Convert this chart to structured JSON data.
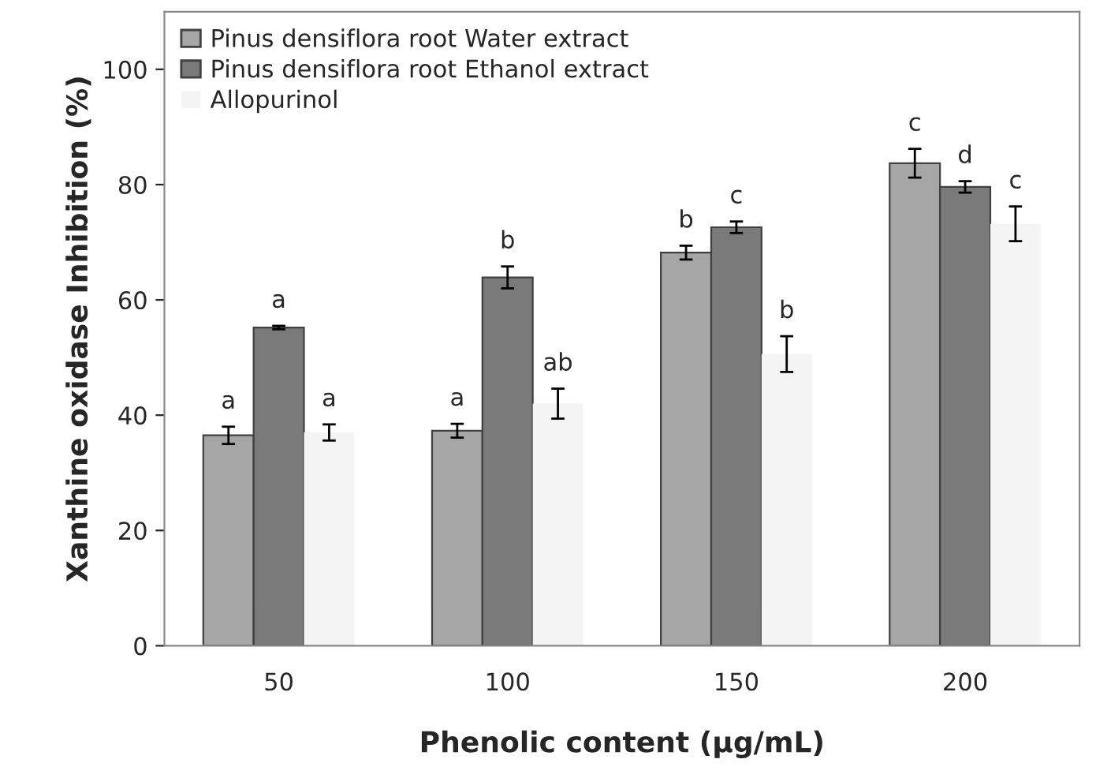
{
  "chart_data": {
    "type": "bar",
    "xlabel": "Phenolic content (µg/mL)",
    "ylabel": "Xanthine oxidase Inhibition (%)",
    "categories": [
      "50",
      "100",
      "150",
      "200"
    ],
    "series": [
      {
        "name": "Pinus densiflora root Water extract",
        "color": "#a6a6a6",
        "values": [
          36.5,
          37.3,
          68.2,
          83.7
        ],
        "errors": [
          1.5,
          1.2,
          1.2,
          2.5
        ],
        "value_labels": [
          "a",
          "a",
          "b",
          "c"
        ]
      },
      {
        "name": "Pinus densiflora root Ethanol extract",
        "color": "#7a7a7a",
        "values": [
          55.2,
          63.9,
          72.6,
          79.6
        ],
        "errors": [
          0.3,
          1.9,
          1.0,
          1.0
        ],
        "value_labels": [
          "a",
          "b",
          "c",
          "d"
        ]
      },
      {
        "name": "Allopurinol",
        "color": "#f4f4f4",
        "values": [
          37.0,
          42.0,
          50.6,
          73.2
        ],
        "errors": [
          1.4,
          2.6,
          3.1,
          3.0
        ],
        "value_labels": [
          "a",
          "ab",
          "b",
          "c"
        ]
      }
    ],
    "ylim": [
      0,
      110
    ],
    "yticks": [
      0,
      20,
      40,
      60,
      80,
      100
    ],
    "grid": false,
    "legend": "top left"
  }
}
